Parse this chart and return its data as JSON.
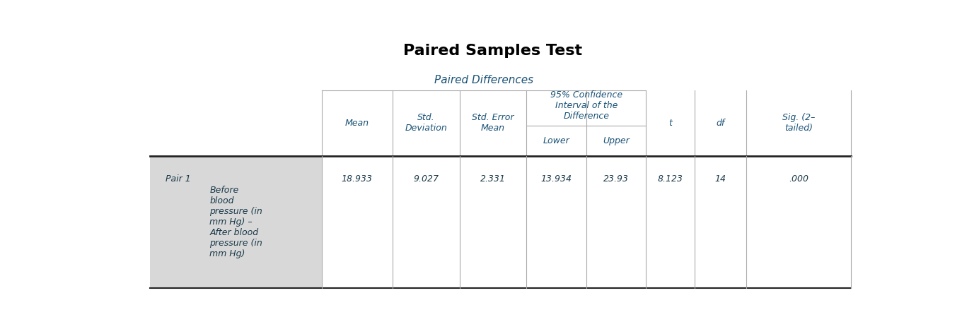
{
  "title": "Paired Samples Test",
  "title_fontsize": 16,
  "title_color": "#000000",
  "header_color": "#1a5276",
  "cell_color": "#1a3a4a",
  "bg_color": "#ffffff",
  "shaded_col_color": "#d8d8d8",
  "paired_diff_label": "Paired Differences",
  "ci_label": "95% Confidence\nInterval of the\nDifference",
  "col_headers": [
    "Mean",
    "Std.\nDeviation",
    "Std. Error\nMean",
    "Lower",
    "Upper",
    "t",
    "df",
    "Sig. (2–\ntailed)"
  ],
  "row_label_pair": "Pair 1",
  "row_label_desc": "Before\nblood\npressure (in\nmm Hg) –\nAfter blood\npressure (in\nmm Hg)",
  "data_values": [
    "18.933",
    "9.027",
    "2.331",
    "13.934",
    "23.93",
    "8.123",
    "14",
    ".000"
  ],
  "figsize": [
    13.6,
    4.66
  ],
  "dpi": 100
}
